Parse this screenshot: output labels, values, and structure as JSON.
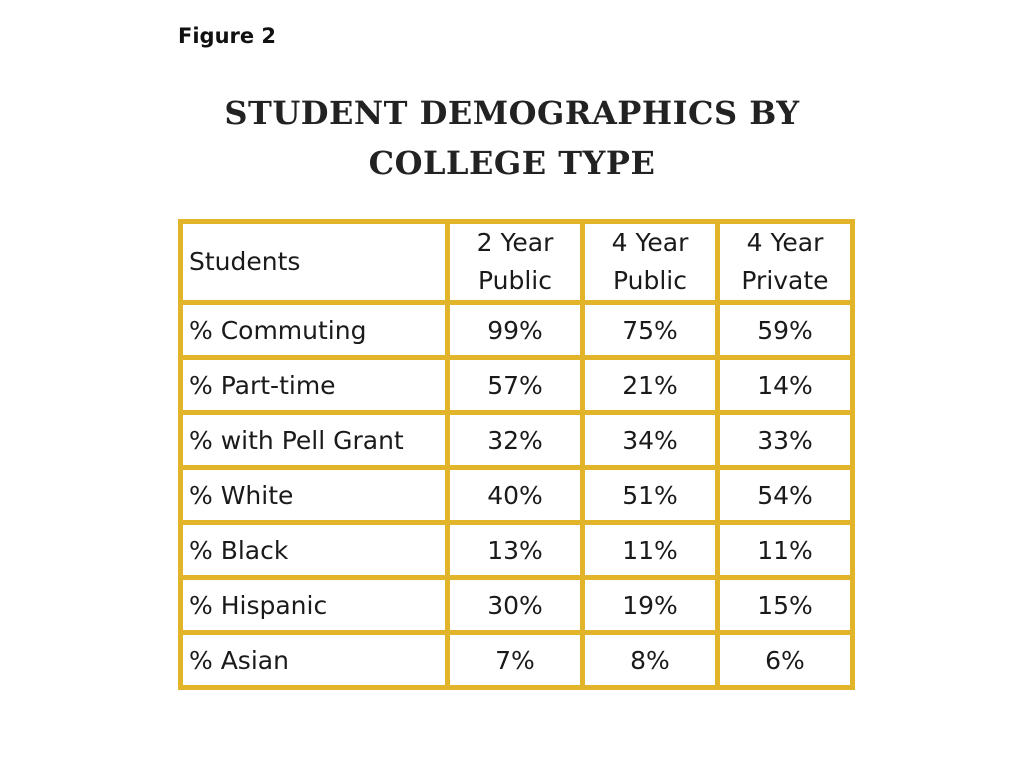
{
  "figure_label": "Figure 2",
  "title_lines": [
    "STUDENT DEMOGRAPHICS BY",
    "COLLEGE TYPE"
  ],
  "colors": {
    "border": "#e2b42a",
    "background": "#ffffff",
    "text": "#1a1a1a"
  },
  "chart_data": {
    "type": "table",
    "title": "STUDENT DEMOGRAPHICS BY COLLEGE TYPE",
    "row_header": "Students",
    "columns": [
      [
        "2 Year",
        "Public"
      ],
      [
        "4 Year",
        "Public"
      ],
      [
        "4 Year",
        "Private"
      ]
    ],
    "rows": [
      {
        "label": "% Commuting",
        "values": [
          "99%",
          "75%",
          "59%"
        ]
      },
      {
        "label": "% Part-time",
        "values": [
          "57%",
          "21%",
          "14%"
        ]
      },
      {
        "label": "% with Pell Grant",
        "values": [
          "32%",
          "34%",
          "33%"
        ]
      },
      {
        "label": "% White",
        "values": [
          "40%",
          "51%",
          "54%"
        ]
      },
      {
        "label": "% Black",
        "values": [
          "13%",
          "11%",
          "11%"
        ]
      },
      {
        "label": "% Hispanic",
        "values": [
          "30%",
          "19%",
          "15%"
        ]
      },
      {
        "label": "% Asian",
        "values": [
          "7%",
          "8%",
          "6%"
        ]
      }
    ]
  }
}
